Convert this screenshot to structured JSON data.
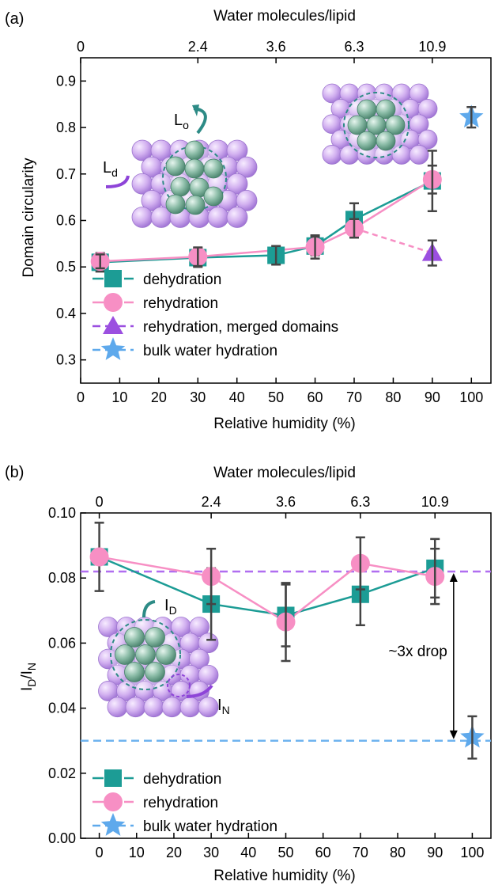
{
  "chart_data": [
    {
      "type": "scatter",
      "panel_label": "(a)",
      "xlabel": "Relative humidity (%)",
      "ylabel": "Domain circularity",
      "x2label": "Water molecules/lipid",
      "xlim": [
        0,
        105
      ],
      "ylim": [
        0.25,
        0.95
      ],
      "xticks": [
        0,
        10,
        20,
        30,
        40,
        50,
        60,
        70,
        80,
        90,
        100
      ],
      "yticks": [
        0.3,
        0.4,
        0.5,
        0.6,
        0.7,
        0.8,
        0.9
      ],
      "top_ticks": [
        {
          "x": 0,
          "label": "0"
        },
        {
          "x": 30,
          "label": "2.4"
        },
        {
          "x": 50,
          "label": "3.6"
        },
        {
          "x": 70,
          "label": "6.3"
        },
        {
          "x": 90,
          "label": "10.9"
        }
      ],
      "series": [
        {
          "name": "dehydration",
          "marker": "square",
          "color": "#1c9c95",
          "line": "solid",
          "x": [
            5,
            30,
            50,
            60,
            70,
            90
          ],
          "y": [
            0.51,
            0.52,
            0.525,
            0.545,
            0.602,
            0.685
          ],
          "err": [
            0.02,
            0.02,
            0.02,
            0.02,
            0.035,
            0.065
          ]
        },
        {
          "name": "rehydration",
          "marker": "circle",
          "color": "#f78fc4",
          "line": "solid",
          "x": [
            5,
            30,
            60,
            70,
            90
          ],
          "y": [
            0.512,
            0.522,
            0.543,
            0.583,
            0.688
          ],
          "err": [
            0.015,
            0.02,
            0.025,
            0.02,
            0.03
          ]
        },
        {
          "name": "rehydration, merged domains",
          "marker": "triangle",
          "color": "#9b4fe0",
          "line": "dashed",
          "x": [
            90
          ],
          "y": [
            0.53
          ],
          "err": [
            0.027
          ]
        },
        {
          "name": "bulk water hydration",
          "marker": "star",
          "color": "#5ea9ec",
          "line": "dashed",
          "x": [
            100
          ],
          "y": [
            0.822
          ],
          "err": [
            0.022
          ]
        }
      ],
      "merged_link": {
        "from": [
          70,
          0.583
        ],
        "to": [
          90,
          0.53
        ],
        "color": "#f78fc4"
      },
      "insets": [
        {
          "labels": [
            "L",
            "o",
            "L",
            "d"
          ]
        },
        {
          "labels": []
        }
      ]
    },
    {
      "type": "scatter",
      "panel_label": "(b)",
      "xlabel": "Relative humidity (%)",
      "ylabel": [
        "I",
        "D",
        "/I",
        "N"
      ],
      "x2label": "Water molecules/lipid",
      "xlim": [
        -5,
        105
      ],
      "ylim": [
        0,
        0.1
      ],
      "xticks": [
        0,
        10,
        20,
        30,
        40,
        50,
        60,
        70,
        80,
        90,
        100
      ],
      "yticks": [
        0.0,
        0.02,
        0.04,
        0.06,
        0.08,
        0.1
      ],
      "ytick_labels": [
        "0.00",
        "0.02",
        "0.04",
        "0.06",
        "0.08",
        "0.10"
      ],
      "top_ticks": [
        {
          "x": 0,
          "label": "0"
        },
        {
          "x": 30,
          "label": "2.4"
        },
        {
          "x": 50,
          "label": "3.6"
        },
        {
          "x": 70,
          "label": "6.3"
        },
        {
          "x": 90,
          "label": "10.9"
        }
      ],
      "series": [
        {
          "name": "dehydration",
          "marker": "square",
          "color": "#1c9c95",
          "line": "solid",
          "x": [
            0,
            30,
            50,
            70,
            90
          ],
          "y": [
            0.0865,
            0.072,
            0.0685,
            0.075,
            0.083
          ],
          "err": [
            0.0105,
            0.011,
            0.0095,
            0.0095,
            0.009
          ]
        },
        {
          "name": "rehydration",
          "marker": "circle",
          "color": "#f78fc4",
          "line": "solid",
          "x": [
            0,
            30,
            50,
            70,
            90
          ],
          "y": [
            0.0865,
            0.0805,
            0.0665,
            0.0845,
            0.0805
          ],
          "err": [
            0.0,
            0.0085,
            0.012,
            0.008,
            0.0085
          ]
        },
        {
          "name": "bulk water hydration",
          "marker": "star",
          "color": "#5ea9ec",
          "line": "dashed",
          "x": [
            100
          ],
          "y": [
            0.031
          ],
          "err": [
            0.0065
          ]
        }
      ],
      "hlines": [
        {
          "y": 0.082,
          "color": "#b06ef0"
        },
        {
          "y": 0.03,
          "color": "#6fb3ef"
        }
      ],
      "annotation": {
        "text": "~3x drop",
        "x": 95,
        "y_from": 0.082,
        "y_to": 0.03
      },
      "insets": [
        {
          "labels": [
            "I",
            "D",
            "I",
            "N"
          ]
        }
      ]
    }
  ]
}
